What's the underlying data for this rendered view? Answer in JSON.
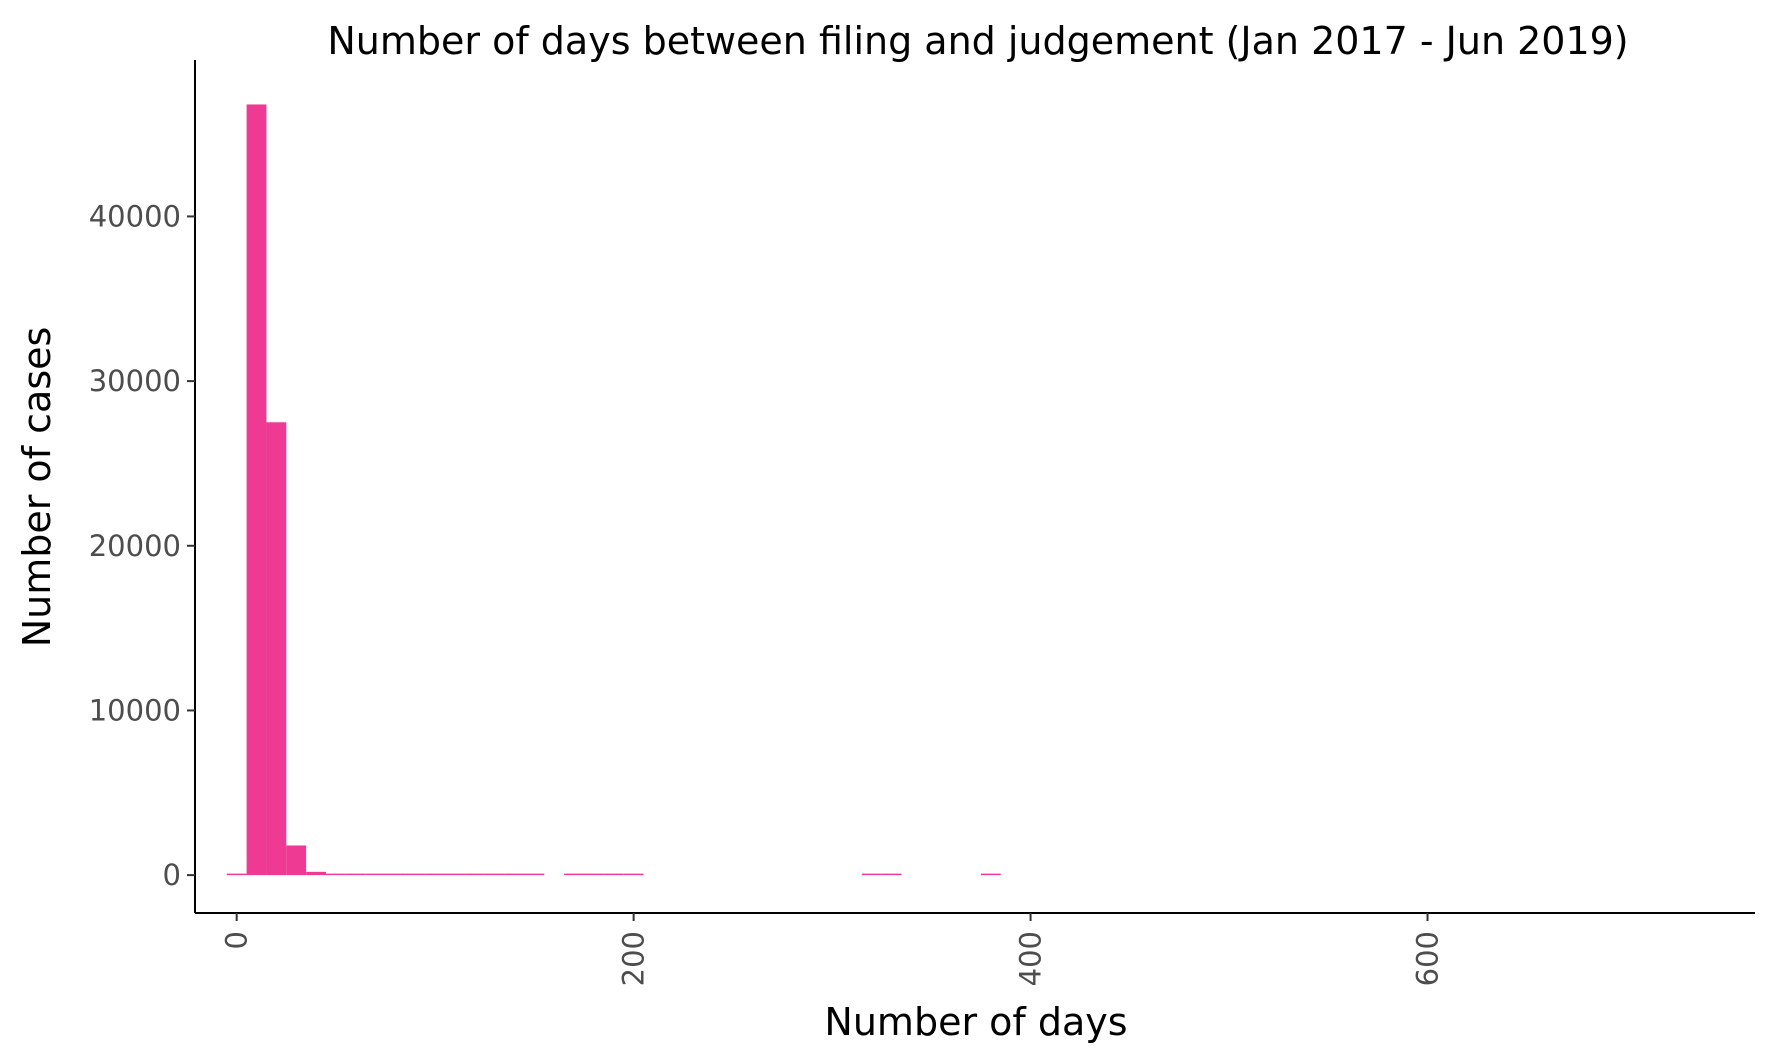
{
  "chart_data": {
    "type": "bar",
    "title": "Number of days between filing and judgement (Jan 2017 - Jun 2019)",
    "xlabel": "Number of days",
    "ylabel": "Number of cases",
    "xlim": [
      -21,
      765
    ],
    "ylim": [
      -2300,
      49500
    ],
    "x_ticks": [
      0,
      200,
      400,
      600
    ],
    "x_tick_labels": [
      "0",
      "200",
      "400",
      "600"
    ],
    "y_ticks": [
      0,
      10000,
      20000,
      30000,
      40000
    ],
    "y_tick_labels": [
      "0",
      "10000",
      "20000",
      "30000",
      "40000"
    ],
    "grid": false,
    "legend": "none",
    "bar_color": "#ee3a92",
    "bin_width": 10,
    "series": [
      {
        "bins": [
          {
            "x0": -5,
            "x1": 5,
            "count": 30
          },
          {
            "x0": 5,
            "x1": 15,
            "count": 46800
          },
          {
            "x0": 15,
            "x1": 25,
            "count": 27500
          },
          {
            "x0": 25,
            "x1": 35,
            "count": 1800
          },
          {
            "x0": 35,
            "x1": 45,
            "count": 200
          },
          {
            "x0": 45,
            "x1": 55,
            "count": 60
          },
          {
            "x0": 55,
            "x1": 65,
            "count": 40
          },
          {
            "x0": 65,
            "x1": 75,
            "count": 30
          },
          {
            "x0": 75,
            "x1": 85,
            "count": 25
          },
          {
            "x0": 85,
            "x1": 95,
            "count": 20
          },
          {
            "x0": 95,
            "x1": 105,
            "count": 20
          },
          {
            "x0": 105,
            "x1": 115,
            "count": 15
          },
          {
            "x0": 115,
            "x1": 125,
            "count": 15
          },
          {
            "x0": 125,
            "x1": 135,
            "count": 10
          },
          {
            "x0": 135,
            "x1": 145,
            "count": 10
          },
          {
            "x0": 145,
            "x1": 155,
            "count": 8
          },
          {
            "x0": 165,
            "x1": 175,
            "count": 6
          },
          {
            "x0": 175,
            "x1": 185,
            "count": 6
          },
          {
            "x0": 185,
            "x1": 195,
            "count": 5
          },
          {
            "x0": 195,
            "x1": 205,
            "count": 5
          },
          {
            "x0": 315,
            "x1": 325,
            "count": 4
          },
          {
            "x0": 325,
            "x1": 335,
            "count": 4
          },
          {
            "x0": 375,
            "x1": 385,
            "count": 3
          }
        ]
      }
    ]
  }
}
